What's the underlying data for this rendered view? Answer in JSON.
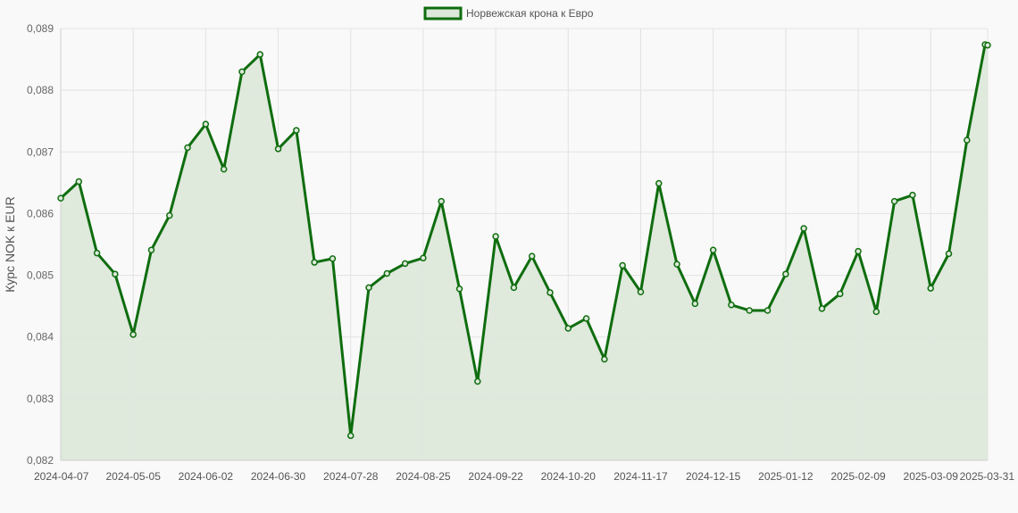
{
  "chart_data": {
    "type": "area",
    "legend": {
      "position": "top-center",
      "entries": [
        {
          "label": "Норвежская крона к Евро",
          "color": "#0e6d0e",
          "fill": "#dde8da"
        }
      ]
    },
    "ylabel": "Курс NOK к EUR",
    "xlabel": "",
    "ylim": [
      0.082,
      0.089
    ],
    "y_ticks": [
      "0,082",
      "0,083",
      "0,084",
      "0,085",
      "0,086",
      "0,087",
      "0,088",
      "0,089"
    ],
    "x_ticks": [
      "2024-04-07",
      "2024-05-05",
      "2024-06-02",
      "2024-06-30",
      "2024-07-28",
      "2024-08-25",
      "2024-09-22",
      "2024-10-20",
      "2024-11-17",
      "2024-12-15",
      "2025-01-12",
      "2025-02-09",
      "2025-03-09",
      "2025-03-31"
    ],
    "grid": true,
    "x_start": "2024-04-07",
    "x_end": "2025-03-31",
    "series": [
      {
        "name": "Норвежская крона к Евро",
        "color": "#0e6d0e",
        "fill": "#dde8da",
        "x": [
          "2024-04-07",
          "2024-04-14",
          "2024-04-21",
          "2024-04-28",
          "2024-05-05",
          "2024-05-12",
          "2024-05-19",
          "2024-05-26",
          "2024-06-02",
          "2024-06-09",
          "2024-06-16",
          "2024-06-23",
          "2024-06-30",
          "2024-07-07",
          "2024-07-14",
          "2024-07-21",
          "2024-07-28",
          "2024-08-04",
          "2024-08-11",
          "2024-08-18",
          "2024-08-25",
          "2024-09-01",
          "2024-09-08",
          "2024-09-15",
          "2024-09-22",
          "2024-09-29",
          "2024-10-06",
          "2024-10-13",
          "2024-10-20",
          "2024-10-27",
          "2024-11-03",
          "2024-11-10",
          "2024-11-17",
          "2024-11-24",
          "2024-12-01",
          "2024-12-08",
          "2024-12-15",
          "2024-12-22",
          "2024-12-29",
          "2025-01-05",
          "2025-01-12",
          "2025-01-19",
          "2025-01-26",
          "2025-02-02",
          "2025-02-09",
          "2025-02-16",
          "2025-02-23",
          "2025-03-02",
          "2025-03-09",
          "2025-03-16",
          "2025-03-23",
          "2025-03-30",
          "2025-03-31"
        ],
        "values": [
          0.08625,
          0.08652,
          0.08536,
          0.08502,
          0.08404,
          0.08541,
          0.08597,
          0.08707,
          0.08745,
          0.08672,
          0.0883,
          0.08858,
          0.08705,
          0.08735,
          0.08521,
          0.08527,
          0.0824,
          0.0848,
          0.08503,
          0.08519,
          0.08528,
          0.0862,
          0.08478,
          0.08328,
          0.08563,
          0.0848,
          0.08531,
          0.08472,
          0.08414,
          0.0843,
          0.08364,
          0.08516,
          0.08473,
          0.08649,
          0.08518,
          0.08454,
          0.08541,
          0.08452,
          0.08443,
          0.08443,
          0.08502,
          0.08576,
          0.08446,
          0.0847,
          0.08539,
          0.08441,
          0.0862,
          0.0863,
          0.08479,
          0.08535,
          0.08719,
          0.08874,
          0.08873
        ]
      }
    ]
  }
}
